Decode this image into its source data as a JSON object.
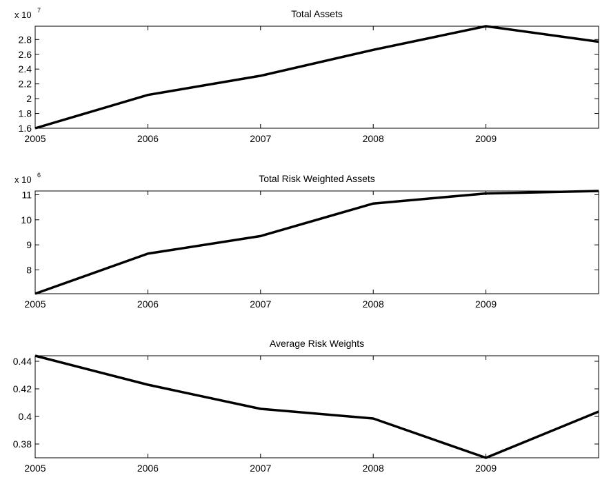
{
  "chart_data": [
    {
      "type": "line",
      "title": "Total Assets",
      "xlabel": "",
      "ylabel": "",
      "scale_label": "x 10",
      "scale_exponent": "7",
      "x": [
        2005,
        2006,
        2007,
        2008,
        2009,
        2010
      ],
      "xlim": [
        2005,
        2010
      ],
      "xticks": [
        "2005",
        "2006",
        "2007",
        "2008",
        "2009"
      ],
      "ylim": [
        1.6,
        2.98
      ],
      "yticks": [
        "1.6",
        "1.8",
        "2",
        "2.2",
        "2.4",
        "2.6",
        "2.8"
      ],
      "series": [
        {
          "values": [
            1.6,
            2.05,
            2.31,
            2.66,
            2.98,
            2.77
          ],
          "color": "#000000"
        }
      ],
      "grid": false
    },
    {
      "type": "line",
      "title": "Total Risk Weighted Assets",
      "xlabel": "",
      "ylabel": "",
      "scale_label": "x 10",
      "scale_exponent": "6",
      "x": [
        2005,
        2006,
        2007,
        2008,
        2009,
        2010
      ],
      "xlim": [
        2005,
        2010
      ],
      "xticks": [
        "2005",
        "2006",
        "2007",
        "2008",
        "2009"
      ],
      "ylim": [
        7.05,
        11.15
      ],
      "yticks": [
        "8",
        "9",
        "10",
        "11"
      ],
      "series": [
        {
          "values": [
            7.05,
            8.65,
            9.35,
            10.65,
            11.05,
            11.15
          ],
          "color": "#000000"
        }
      ],
      "grid": false
    },
    {
      "type": "line",
      "title": "Average Risk Weights",
      "xlabel": "",
      "ylabel": "",
      "scale_label": "",
      "scale_exponent": "",
      "x": [
        2005,
        2006,
        2007,
        2008,
        2009,
        2010
      ],
      "xlim": [
        2005,
        2010
      ],
      "xticks": [
        "2005",
        "2006",
        "2007",
        "2008",
        "2009"
      ],
      "ylim": [
        0.37,
        0.444
      ],
      "yticks": [
        "0.38",
        "0.4",
        "0.42",
        "0.44"
      ],
      "series": [
        {
          "values": [
            0.444,
            0.423,
            0.4055,
            0.3985,
            0.37,
            0.4035
          ],
          "color": "#000000"
        }
      ],
      "grid": false
    }
  ]
}
